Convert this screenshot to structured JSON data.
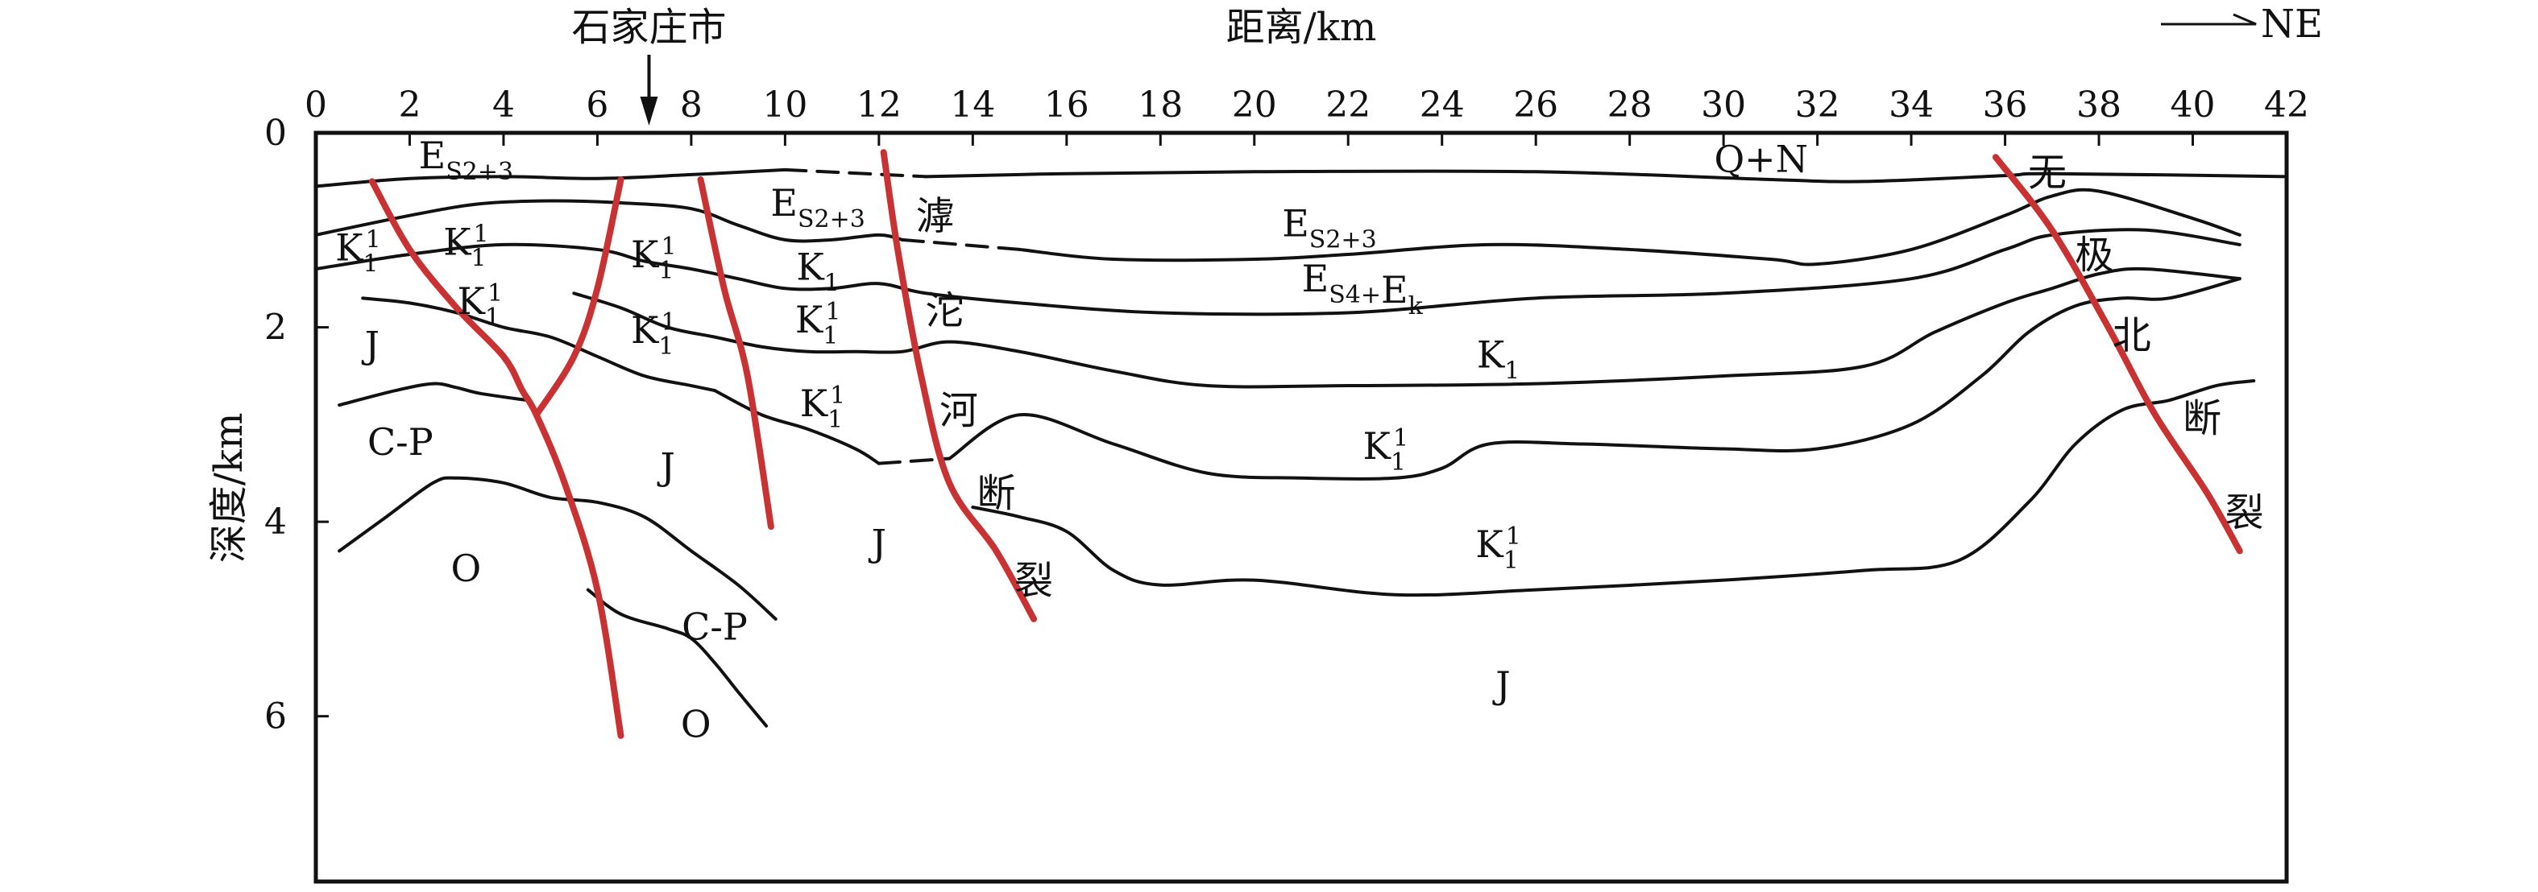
{
  "colors": {
    "fault": "#c83232",
    "line": "#111111"
  },
  "chart_data": {
    "type": "cross-section",
    "xlabel": "距离/km",
    "ylabel": "深度/km",
    "xlim": [
      0,
      42
    ],
    "ylim": [
      0,
      7.7
    ],
    "x_ticks": [
      "0",
      "2",
      "4",
      "6",
      "8",
      "10",
      "12",
      "14",
      "16",
      "18",
      "20",
      "22",
      "24",
      "26",
      "28",
      "30",
      "32",
      "34",
      "36",
      "38",
      "40",
      "42"
    ],
    "y_ticks": [
      {
        "value": 0,
        "label": "0"
      },
      {
        "value": 2,
        "label": "2"
      },
      {
        "value": 4,
        "label": "4"
      },
      {
        "value": 6,
        "label": "6"
      }
    ],
    "city_marker": {
      "label": "石家庄市",
      "x": 7.1
    },
    "direction": {
      "label": "NE"
    },
    "boundaries": [
      {
        "points": [
          [
            0,
            0.55
          ],
          [
            2,
            0.47
          ],
          [
            4,
            0.45
          ],
          [
            6,
            0.47
          ],
          [
            8,
            0.43
          ],
          [
            10,
            0.38
          ]
        ]
      },
      {
        "points": [
          [
            10,
            0.38
          ],
          [
            13,
            0.45
          ]
        ],
        "dashed": true
      },
      {
        "points": [
          [
            13,
            0.45
          ],
          [
            16,
            0.42
          ],
          [
            20,
            0.4
          ],
          [
            26,
            0.4
          ],
          [
            31,
            0.48
          ],
          [
            33,
            0.5
          ],
          [
            36,
            0.44
          ],
          [
            37,
            0.42
          ],
          [
            42,
            0.45
          ]
        ]
      },
      {
        "points": [
          [
            0,
            1.05
          ],
          [
            2,
            0.85
          ],
          [
            3.5,
            0.73
          ],
          [
            5,
            0.7
          ],
          [
            6.5,
            0.72
          ],
          [
            8,
            0.78
          ],
          [
            9,
            0.95
          ],
          [
            10,
            1.1
          ],
          [
            11,
            1.1
          ],
          [
            12,
            1.05
          ],
          [
            12.5,
            1.1
          ]
        ]
      },
      {
        "points": [
          [
            12.5,
            1.1
          ],
          [
            15,
            1.2
          ]
        ],
        "dashed": true
      },
      {
        "points": [
          [
            15,
            1.2
          ],
          [
            17,
            1.3
          ],
          [
            20,
            1.3
          ],
          [
            22,
            1.25
          ],
          [
            25,
            1.15
          ],
          [
            28,
            1.2
          ],
          [
            31,
            1.3
          ],
          [
            32,
            1.35
          ],
          [
            34,
            1.2
          ],
          [
            36,
            0.85
          ],
          [
            37,
            0.65
          ],
          [
            38,
            0.6
          ],
          [
            40,
            0.88
          ],
          [
            41,
            1.05
          ]
        ]
      },
      {
        "points": [
          [
            0,
            1.4
          ],
          [
            2,
            1.25
          ],
          [
            4,
            1.15
          ],
          [
            6,
            1.2
          ],
          [
            7,
            1.32
          ],
          [
            8,
            1.4
          ],
          [
            9,
            1.5
          ],
          [
            10,
            1.6
          ],
          [
            11,
            1.6
          ],
          [
            12,
            1.55
          ],
          [
            13,
            1.65
          ],
          [
            15,
            1.75
          ],
          [
            18,
            1.85
          ],
          [
            22,
            1.85
          ],
          [
            26,
            1.7
          ],
          [
            30,
            1.65
          ],
          [
            34,
            1.5
          ],
          [
            36,
            1.2
          ],
          [
            37,
            1.05
          ],
          [
            39,
            1.0
          ],
          [
            41,
            1.15
          ]
        ]
      },
      {
        "points": [
          [
            1,
            1.7
          ],
          [
            2,
            1.75
          ],
          [
            3,
            1.85
          ],
          [
            4,
            2.0
          ],
          [
            5,
            2.1
          ],
          [
            6,
            2.3
          ],
          [
            7,
            2.5
          ],
          [
            8,
            2.6
          ],
          [
            8.5,
            2.65
          ]
        ]
      },
      {
        "points": [
          [
            5.5,
            1.65
          ],
          [
            6.5,
            1.8
          ],
          [
            7.5,
            2.0
          ],
          [
            8.5,
            2.1
          ],
          [
            9.5,
            2.2
          ],
          [
            10.5,
            2.25
          ],
          [
            11.5,
            2.25
          ],
          [
            12.5,
            2.25
          ],
          [
            13.5,
            2.15
          ],
          [
            15,
            2.25
          ],
          [
            17,
            2.45
          ],
          [
            19,
            2.6
          ],
          [
            22,
            2.6
          ],
          [
            26,
            2.58
          ],
          [
            30,
            2.5
          ],
          [
            33,
            2.4
          ],
          [
            34.5,
            2.05
          ],
          [
            36,
            1.75
          ],
          [
            37,
            1.6
          ],
          [
            38,
            1.45
          ],
          [
            39,
            1.4
          ],
          [
            41,
            1.5
          ]
        ]
      },
      {
        "points": [
          [
            8.5,
            2.65
          ],
          [
            9.5,
            2.9
          ],
          [
            10.5,
            3.05
          ],
          [
            11.5,
            3.25
          ],
          [
            12,
            3.4
          ]
        ]
      },
      {
        "points": [
          [
            12,
            3.4
          ],
          [
            13.5,
            3.35
          ]
        ],
        "dashed": true
      },
      {
        "points": [
          [
            13.5,
            3.35
          ],
          [
            15,
            2.9
          ],
          [
            17,
            3.2
          ],
          [
            19,
            3.5
          ],
          [
            21,
            3.55
          ],
          [
            23,
            3.55
          ],
          [
            24,
            3.45
          ],
          [
            25,
            3.2
          ],
          [
            27,
            3.2
          ],
          [
            30,
            3.25
          ],
          [
            32,
            3.25
          ],
          [
            34,
            3.0
          ],
          [
            35.5,
            2.5
          ],
          [
            36.5,
            2.05
          ],
          [
            37.5,
            1.78
          ],
          [
            38.5,
            1.7
          ],
          [
            39.5,
            1.7
          ],
          [
            41,
            1.5
          ]
        ]
      },
      {
        "points": [
          [
            0.5,
            2.8
          ],
          [
            1.7,
            2.65
          ],
          [
            2.5,
            2.58
          ],
          [
            3,
            2.62
          ],
          [
            3.5,
            2.68
          ],
          [
            4.5,
            2.75
          ]
        ]
      },
      {
        "points": [
          [
            0.5,
            4.3
          ],
          [
            1.5,
            3.95
          ],
          [
            2.5,
            3.6
          ],
          [
            3,
            3.55
          ],
          [
            4,
            3.6
          ],
          [
            5,
            3.75
          ],
          [
            6,
            3.8
          ],
          [
            7,
            3.95
          ],
          [
            8,
            4.3
          ],
          [
            9,
            4.65
          ],
          [
            9.8,
            5.0
          ]
        ]
      },
      {
        "points": [
          [
            5.8,
            4.7
          ],
          [
            6.5,
            4.95
          ],
          [
            7.5,
            5.1
          ],
          [
            8,
            5.2
          ],
          [
            8.5,
            5.45
          ],
          [
            9,
            5.75
          ],
          [
            9.6,
            6.1
          ]
        ]
      },
      {
        "points": [
          [
            14,
            3.85
          ],
          [
            15,
            3.95
          ],
          [
            16,
            4.1
          ],
          [
            17,
            4.5
          ],
          [
            18,
            4.65
          ],
          [
            20,
            4.6
          ],
          [
            23,
            4.75
          ],
          [
            26,
            4.7
          ],
          [
            30,
            4.6
          ],
          [
            33,
            4.5
          ],
          [
            35,
            4.4
          ],
          [
            36.5,
            3.8
          ],
          [
            37.5,
            3.2
          ],
          [
            38.5,
            2.85
          ],
          [
            39.5,
            2.75
          ],
          [
            40.5,
            2.6
          ],
          [
            41.3,
            2.55
          ]
        ]
      }
    ],
    "faults": [
      {
        "points": [
          [
            1.2,
            0.5
          ],
          [
            2,
            1.2
          ],
          [
            3,
            1.8
          ],
          [
            4,
            2.3
          ],
          [
            4.4,
            2.65
          ],
          [
            4.7,
            2.9
          ],
          [
            5.3,
            3.6
          ],
          [
            6,
            4.7
          ],
          [
            6.5,
            6.2
          ]
        ]
      },
      {
        "points": [
          [
            4.7,
            2.9
          ],
          [
            5.5,
            2.3
          ],
          [
            6,
            1.6
          ],
          [
            6.5,
            0.48
          ]
        ]
      },
      {
        "points": [
          [
            8.2,
            0.48
          ],
          [
            8.7,
            1.6
          ],
          [
            9.2,
            2.5
          ],
          [
            9.7,
            4.05
          ]
        ]
      },
      {
        "points": [
          [
            12.1,
            0.2
          ],
          [
            12.4,
            1.2
          ],
          [
            12.9,
            2.5
          ],
          [
            13.5,
            3.6
          ],
          [
            14.5,
            4.3
          ],
          [
            15.3,
            5.0
          ]
        ]
      },
      {
        "points": [
          [
            35.8,
            0.25
          ],
          [
            37,
            1.0
          ],
          [
            38.2,
            2.0
          ],
          [
            39.2,
            2.9
          ],
          [
            40.3,
            3.7
          ],
          [
            41,
            4.3
          ]
        ]
      }
    ],
    "unit_labels": [
      {
        "main": "E",
        "sub": "S2+3",
        "x": 3.2,
        "y": 0.23
      },
      {
        "main": "Q+N",
        "x": 30.8,
        "y": 0.27
      },
      {
        "main": "E",
        "sub": "S2+3",
        "x": 10.7,
        "y": 0.72
      },
      {
        "main": "E",
        "sub": "S2+3",
        "x": 21.6,
        "y": 0.93
      },
      {
        "main": "K",
        "sub": "1",
        "sup": "1",
        "x": 0.9,
        "y": 1.18
      },
      {
        "main": "K",
        "sub": "1",
        "sup": "1",
        "x": 3.2,
        "y": 1.12
      },
      {
        "main": "K",
        "sub": "1",
        "sup": "1",
        "x": 7.2,
        "y": 1.25
      },
      {
        "main": "K",
        "sub": "1",
        "x": 10.7,
        "y": 1.38
      },
      {
        "main": "E",
        "sub": "S4+",
        "main2": "E",
        "sub2": "k",
        "x": 22.3,
        "y": 1.5
      },
      {
        "main": "K",
        "sub": "1",
        "sup": "1",
        "x": 3.5,
        "y": 1.73
      },
      {
        "main": "K",
        "sub": "1",
        "sup": "1",
        "x": 7.2,
        "y": 2.03
      },
      {
        "main": "K",
        "sub": "1",
        "sup": "1",
        "x": 10.7,
        "y": 1.92
      },
      {
        "main": "J",
        "x": 1.2,
        "y": 2.18
      },
      {
        "main": "K",
        "sub": "1",
        "x": 25.2,
        "y": 2.28
      },
      {
        "main": "K",
        "sub": "1",
        "sup": "1",
        "x": 10.8,
        "y": 2.78
      },
      {
        "main": "C-P",
        "x": 1.8,
        "y": 3.18
      },
      {
        "main": "K",
        "sub": "1",
        "sup": "1",
        "x": 22.8,
        "y": 3.22
      },
      {
        "main": "J",
        "x": 7.5,
        "y": 3.43
      },
      {
        "main": "O",
        "x": 3.2,
        "y": 4.48
      },
      {
        "main": "J",
        "x": 12,
        "y": 4.22
      },
      {
        "main": "K",
        "sub": "1",
        "sup": "1",
        "x": 25.2,
        "y": 4.23
      },
      {
        "main": "C-P",
        "x": 8.5,
        "y": 5.08
      },
      {
        "main": "O",
        "x": 8.1,
        "y": 6.08
      },
      {
        "main": "J",
        "x": 25.3,
        "y": 5.68
      }
    ],
    "fault_labels": [
      {
        "text": "滹",
        "x": 13.2,
        "y": 0.85
      },
      {
        "text": "沱",
        "x": 13.4,
        "y": 1.82
      },
      {
        "text": "河",
        "x": 13.7,
        "y": 2.85
      },
      {
        "text": "断",
        "x": 14.5,
        "y": 3.7
      },
      {
        "text": "裂",
        "x": 15.3,
        "y": 4.6
      },
      {
        "text": "无",
        "x": 36.9,
        "y": 0.4
      },
      {
        "text": "极",
        "x": 37.9,
        "y": 1.25
      },
      {
        "text": "北",
        "x": 38.7,
        "y": 2.08
      },
      {
        "text": "断",
        "x": 40.2,
        "y": 2.93
      },
      {
        "text": "裂",
        "x": 41.1,
        "y": 3.9
      }
    ]
  }
}
